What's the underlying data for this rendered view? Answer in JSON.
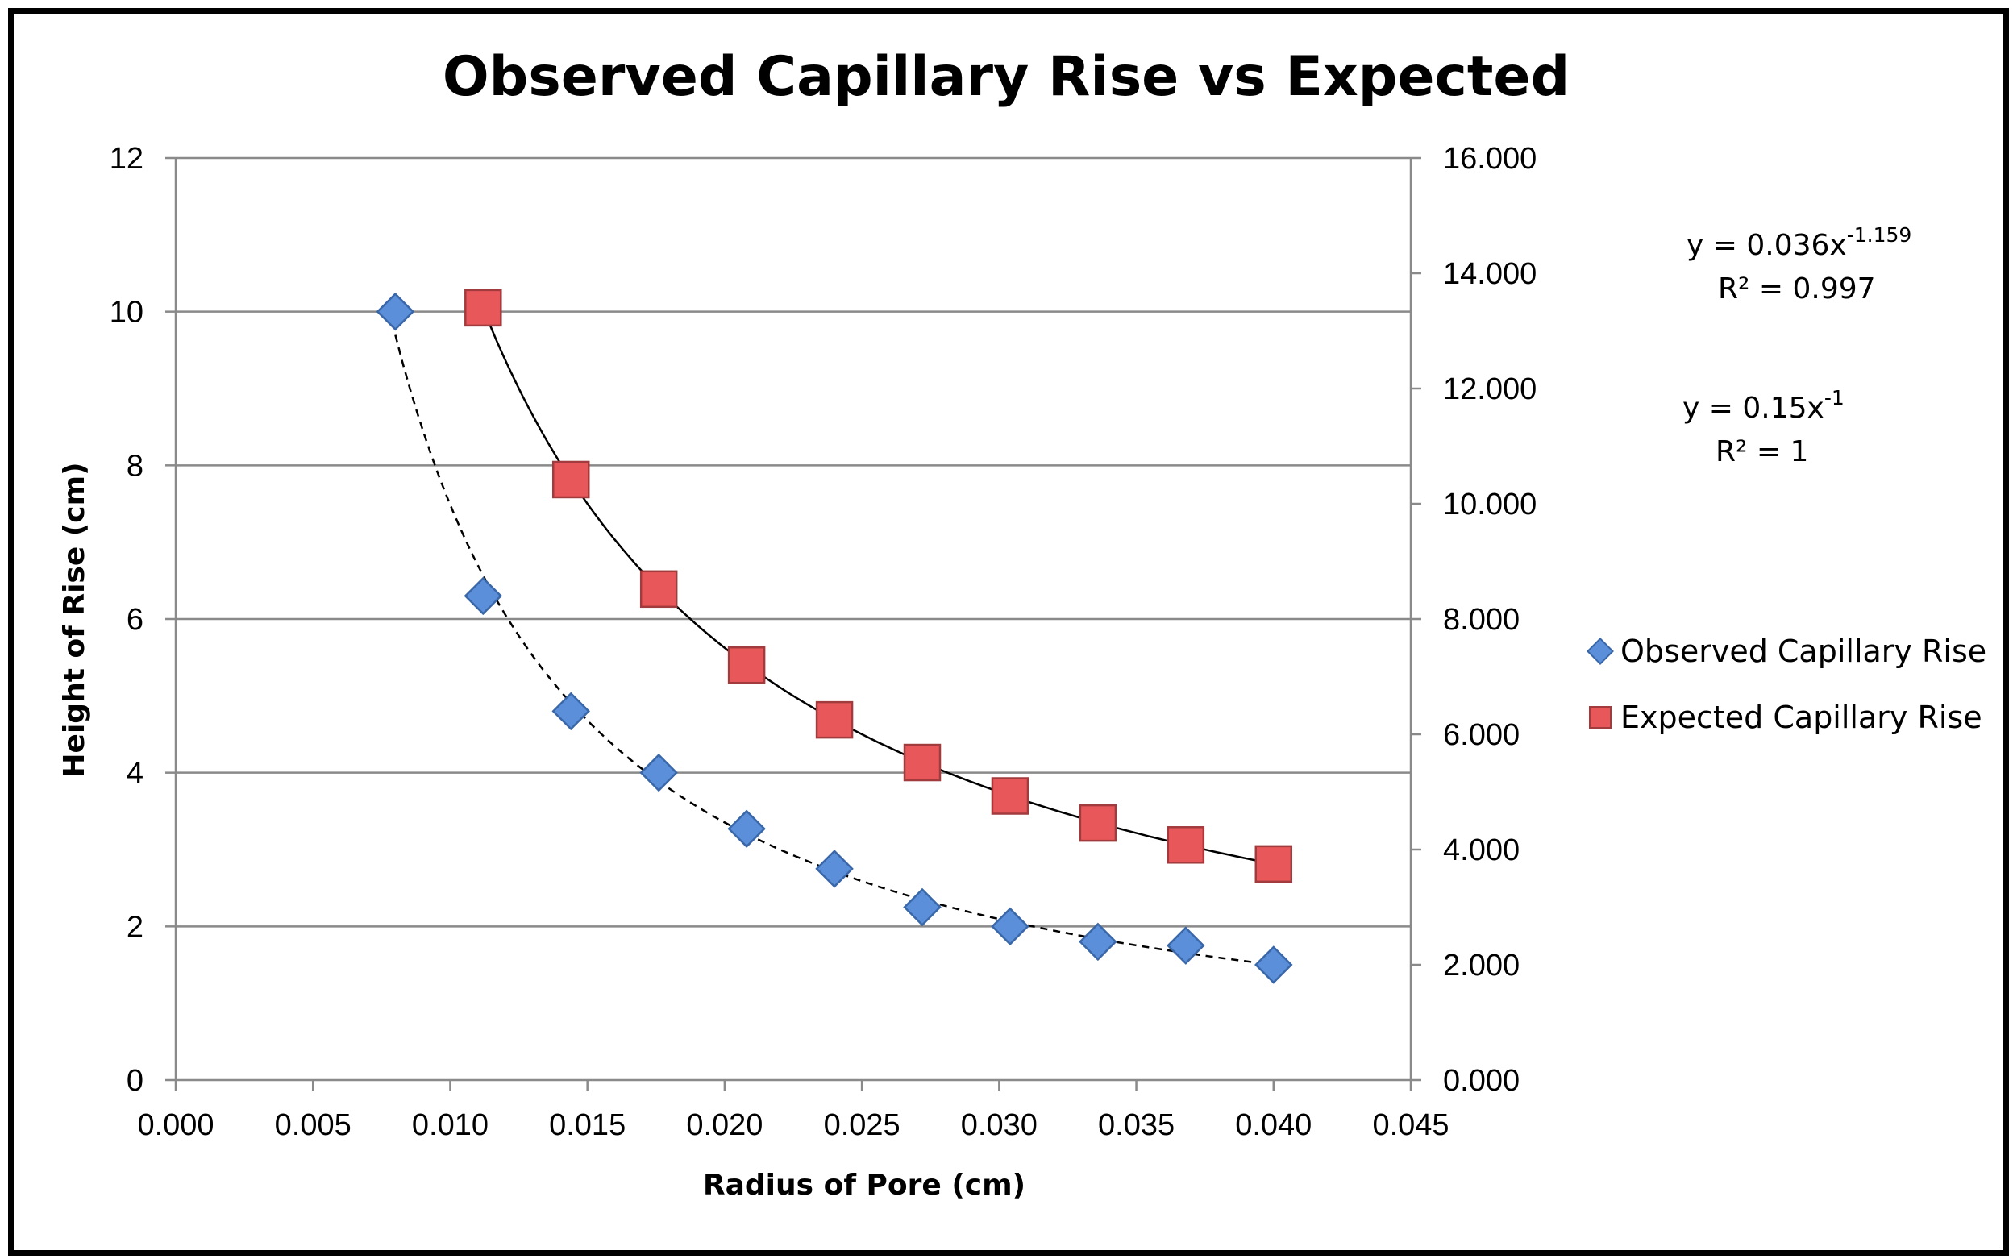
{
  "chart_data": {
    "type": "scatter",
    "title": "Observed Capillary Rise vs Expected",
    "xlabel": "Radius of Pore (cm)",
    "ylabel": "Height of Rise (cm)",
    "xlim": [
      0,
      0.045
    ],
    "ylim": [
      0,
      12
    ],
    "y2lim": [
      0,
      16
    ],
    "x_ticks": [
      "0.000",
      "0.005",
      "0.010",
      "0.015",
      "0.020",
      "0.025",
      "0.030",
      "0.035",
      "0.040",
      "0.045"
    ],
    "y_ticks": [
      "0",
      "2",
      "4",
      "6",
      "8",
      "10",
      "12"
    ],
    "y2_ticks": [
      "0.000",
      "2.000",
      "4.000",
      "6.000",
      "8.000",
      "10.000",
      "12.000",
      "14.000",
      "16.000"
    ],
    "grid": "horizontal",
    "legend_position": "right",
    "series": [
      {
        "name": "Observed Capillary Rise",
        "axis": "left",
        "marker": "diamond",
        "color": "#5b8fd9",
        "x": [
          0.008,
          0.0112,
          0.0144,
          0.0176,
          0.0208,
          0.024,
          0.0272,
          0.0304,
          0.0336,
          0.0368,
          0.04
        ],
        "y": [
          10,
          6.3,
          4.8,
          4.0,
          3.27,
          2.75,
          2.25,
          2.0,
          1.8,
          1.75,
          1.5
        ],
        "trendline": {
          "style": "dashed",
          "a": 0.036,
          "b": -1.159,
          "x_range": [
            0.008,
            0.04
          ]
        }
      },
      {
        "name": "Expected Capillary Rise",
        "axis": "right",
        "marker": "square",
        "color": "#e8585a",
        "x": [
          0.0112,
          0.0144,
          0.0176,
          0.0208,
          0.024,
          0.0272,
          0.0304,
          0.0336,
          0.0368,
          0.04
        ],
        "y": [
          13.4,
          10.42,
          8.52,
          7.2,
          6.25,
          5.51,
          4.93,
          4.46,
          4.08,
          3.75
        ],
        "trendline": {
          "style": "solid",
          "a": 0.15,
          "b": -1,
          "x_range": [
            0.0112,
            0.04
          ]
        }
      }
    ],
    "annotations": [
      {
        "eq_base": "y = 0.036x",
        "eq_exp": "-1.159",
        "r2": "R² = 0.997"
      },
      {
        "eq_base": "y = 0.15x",
        "eq_exp": "-1",
        "r2": "R² = 1"
      }
    ]
  }
}
